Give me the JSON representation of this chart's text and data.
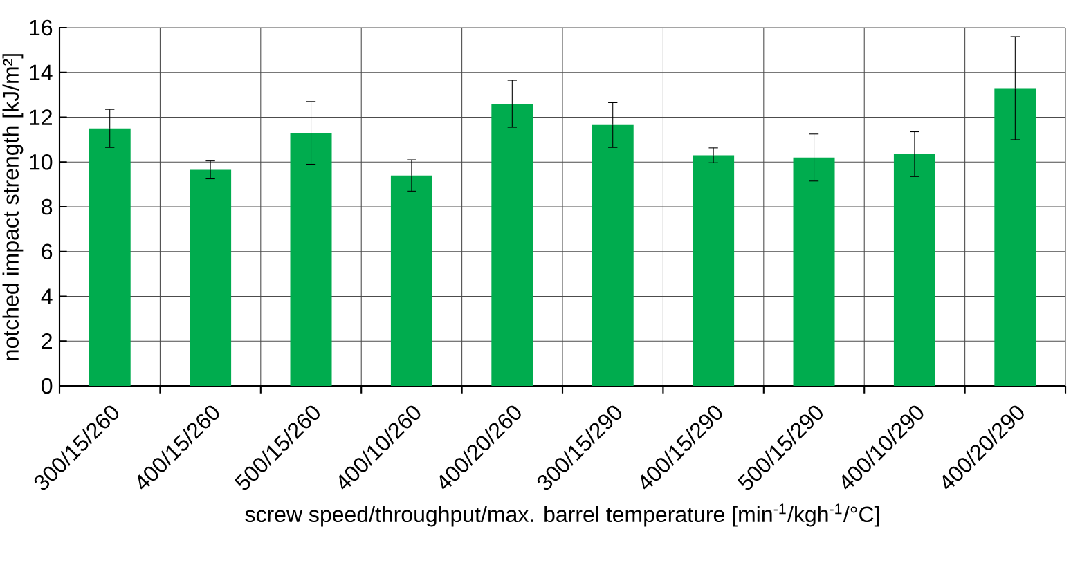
{
  "chart_data": {
    "type": "bar",
    "xlabel": "screw speed/throughput/max. barrel temperature   [min$^{-1}$/kgh$^{-1}$/°C]",
    "ylabel": "notched impact strength   [kJ/m²]",
    "categories": [
      "300/15/260",
      "400/15/260",
      "500/15/260",
      "400/10/260",
      "400/20/260",
      "300/15/290",
      "400/15/290",
      "500/15/290",
      "400/10/290",
      "400/20/290"
    ],
    "values": [
      11.5,
      9.65,
      11.3,
      9.4,
      12.6,
      11.65,
      10.3,
      10.2,
      10.35,
      13.3
    ],
    "errors": [
      0.85,
      0.4,
      1.4,
      0.7,
      1.05,
      1.0,
      0.33,
      1.05,
      1.0,
      2.3
    ],
    "color": "#00ac4e",
    "ylim": [
      0,
      16
    ],
    "yticks": [
      0,
      2,
      4,
      6,
      8,
      10,
      12,
      14,
      16
    ],
    "grid": true
  }
}
